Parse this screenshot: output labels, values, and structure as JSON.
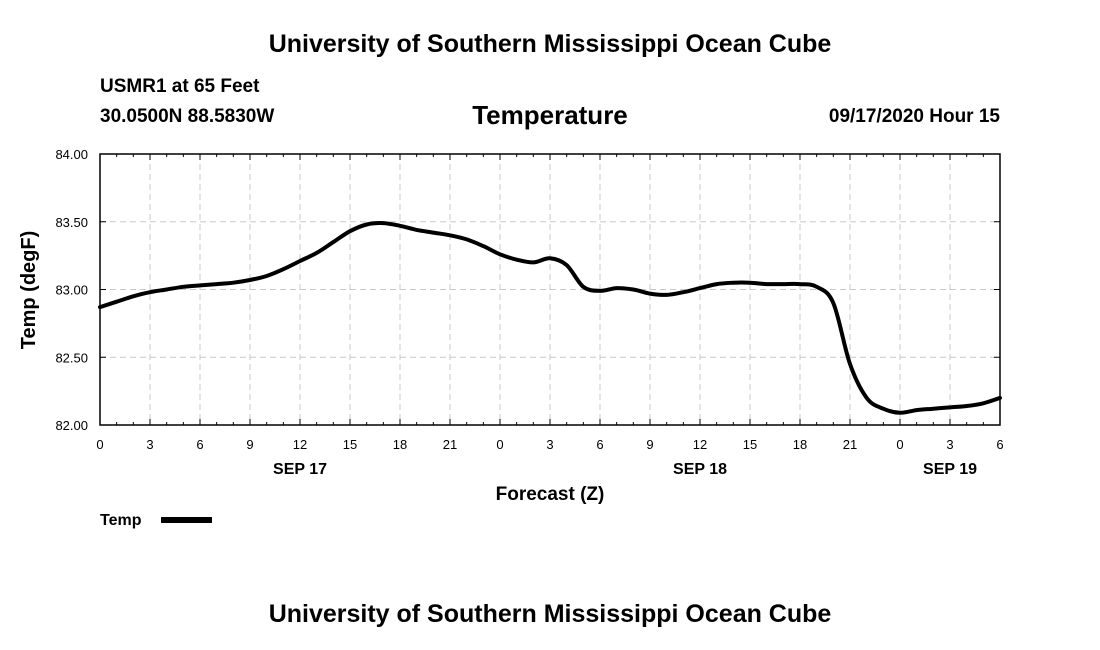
{
  "header": {
    "title_top": "University of Southern Mississippi Ocean Cube",
    "title_bottom": "University of Southern Mississippi Ocean Cube",
    "station": "USMR1 at 65 Feet",
    "location": "30.0500N 88.5830W",
    "timestamp": "09/17/2020 Hour 15"
  },
  "chart_data": {
    "type": "line",
    "title": "Temperature",
    "xlabel": "Forecast (Z)",
    "ylabel": "Temp (degF)",
    "ylim": [
      82.0,
      84.0
    ],
    "xlim": [
      0,
      54
    ],
    "grid": true,
    "y_ticks": [
      "82.00",
      "82.50",
      "83.00",
      "83.50",
      "84.00"
    ],
    "x_ticks": [
      {
        "h": 0,
        "label": "0"
      },
      {
        "h": 3,
        "label": "3"
      },
      {
        "h": 6,
        "label": "6"
      },
      {
        "h": 9,
        "label": "9"
      },
      {
        "h": 12,
        "label": "12"
      },
      {
        "h": 15,
        "label": "15"
      },
      {
        "h": 18,
        "label": "18"
      },
      {
        "h": 21,
        "label": "21"
      },
      {
        "h": 24,
        "label": "0"
      },
      {
        "h": 27,
        "label": "3"
      },
      {
        "h": 30,
        "label": "6"
      },
      {
        "h": 33,
        "label": "9"
      },
      {
        "h": 36,
        "label": "12"
      },
      {
        "h": 39,
        "label": "15"
      },
      {
        "h": 42,
        "label": "18"
      },
      {
        "h": 45,
        "label": "21"
      },
      {
        "h": 48,
        "label": "0"
      },
      {
        "h": 51,
        "label": "3"
      },
      {
        "h": 54,
        "label": "6"
      }
    ],
    "date_labels": [
      {
        "h": 12,
        "label": "SEP 17"
      },
      {
        "h": 36,
        "label": "SEP 18"
      },
      {
        "h": 51,
        "label": "SEP 19"
      }
    ],
    "legend": {
      "label": "Temp",
      "position": "bottom-left"
    },
    "series": [
      {
        "name": "Temp",
        "x": [
          0,
          1,
          2,
          3,
          4,
          5,
          6,
          7,
          8,
          9,
          10,
          11,
          12,
          13,
          14,
          15,
          16,
          17,
          18,
          19,
          20,
          21,
          22,
          23,
          24,
          25,
          26,
          27,
          28,
          29,
          30,
          31,
          32,
          33,
          34,
          35,
          36,
          37,
          38,
          39,
          40,
          41,
          42,
          43,
          44,
          45,
          46,
          47,
          48,
          49,
          50,
          51,
          52,
          53,
          54
        ],
        "values": [
          82.87,
          82.91,
          82.95,
          82.98,
          83.0,
          83.02,
          83.03,
          83.04,
          83.05,
          83.07,
          83.1,
          83.15,
          83.21,
          83.27,
          83.35,
          83.43,
          83.48,
          83.49,
          83.47,
          83.44,
          83.42,
          83.4,
          83.37,
          83.32,
          83.26,
          83.22,
          83.2,
          83.23,
          83.18,
          83.02,
          82.99,
          83.01,
          83.0,
          82.97,
          82.96,
          82.98,
          83.01,
          83.04,
          83.05,
          83.05,
          83.04,
          83.04,
          83.04,
          83.02,
          82.9,
          82.45,
          82.2,
          82.12,
          82.09,
          82.11,
          82.12,
          82.13,
          82.14,
          82.16,
          82.2
        ]
      }
    ]
  }
}
